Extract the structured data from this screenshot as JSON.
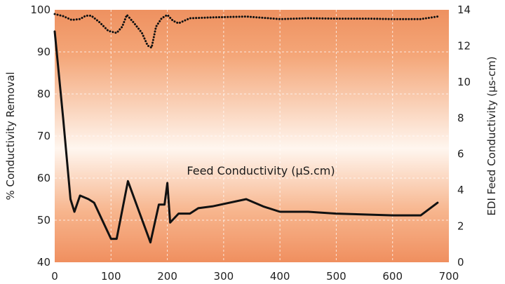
{
  "chart_data": {
    "type": "line",
    "title": "",
    "xlabel": "",
    "ylabel": "% Conductivity Removal",
    "y2label": "EDI Feed Conductivity (µs-cm)",
    "annotation": "Feed Conductivity (µS.cm)",
    "xlim": [
      0,
      700
    ],
    "ylim": [
      40,
      100
    ],
    "y2lim": [
      0,
      14
    ],
    "x_ticks": [
      0,
      100,
      200,
      300,
      400,
      500,
      600,
      700
    ],
    "y_ticks": [
      40,
      50,
      60,
      70,
      80,
      90,
      100
    ],
    "y2_ticks": [
      0,
      2,
      4,
      6,
      8,
      10,
      12,
      14
    ],
    "grid": true,
    "colors": {
      "background_top": "#ee9160",
      "background_mid": "#fff6ef",
      "background_bottom": "#f08f5f",
      "line": "#111111"
    },
    "series": [
      {
        "axis": "left",
        "style": "dotted",
        "points": [
          [
            0,
            99
          ],
          [
            15,
            98.5
          ],
          [
            30,
            97.6
          ],
          [
            45,
            97.8
          ],
          [
            55,
            98.6
          ],
          [
            65,
            98.6
          ],
          [
            80,
            97
          ],
          [
            95,
            95
          ],
          [
            110,
            94.5
          ],
          [
            120,
            96
          ],
          [
            128,
            98.8
          ],
          [
            140,
            97
          ],
          [
            155,
            94.5
          ],
          [
            165,
            91.5
          ],
          [
            172,
            91
          ],
          [
            180,
            96
          ],
          [
            190,
            98
          ],
          [
            200,
            98.8
          ],
          [
            210,
            97.4
          ],
          [
            220,
            96.8
          ],
          [
            240,
            98
          ],
          [
            280,
            98.2
          ],
          [
            340,
            98.4
          ],
          [
            400,
            97.8
          ],
          [
            450,
            98
          ],
          [
            500,
            97.9
          ],
          [
            560,
            97.9
          ],
          [
            600,
            97.8
          ],
          [
            650,
            97.8
          ],
          [
            680,
            98.4
          ]
        ]
      },
      {
        "axis": "right",
        "style": "solid",
        "points": [
          [
            0,
            12.8
          ],
          [
            15,
            8
          ],
          [
            28,
            3.5
          ],
          [
            35,
            2.8
          ],
          [
            45,
            3.7
          ],
          [
            60,
            3.5
          ],
          [
            70,
            3.3
          ],
          [
            85,
            2.3
          ],
          [
            100,
            1.3
          ],
          [
            110,
            1.3
          ],
          [
            130,
            4.5
          ],
          [
            150,
            2.8
          ],
          [
            170,
            1.1
          ],
          [
            185,
            3.2
          ],
          [
            195,
            3.2
          ],
          [
            200,
            4.4
          ],
          [
            205,
            2.2
          ],
          [
            220,
            2.7
          ],
          [
            240,
            2.7
          ],
          [
            255,
            3.0
          ],
          [
            280,
            3.1
          ],
          [
            340,
            3.5
          ],
          [
            370,
            3.1
          ],
          [
            400,
            2.8
          ],
          [
            450,
            2.8
          ],
          [
            500,
            2.7
          ],
          [
            600,
            2.6
          ],
          [
            650,
            2.6
          ],
          [
            680,
            3.3
          ]
        ]
      }
    ]
  }
}
